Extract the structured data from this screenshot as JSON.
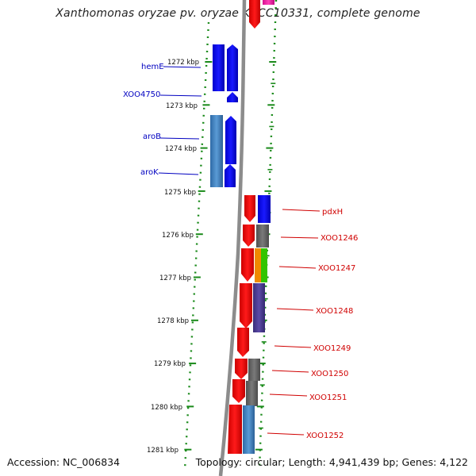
{
  "title": "Xanthomonas oryzae pv. oryzae KACC10331, complete genome",
  "footer": {
    "accession": "Accession: NC_006834",
    "summary": "Topology: circular; Length: 4,941,439 bp; Genes: 4,122"
  },
  "colors": {
    "forward_label": "#0000c0",
    "reverse_label": "#d00000",
    "backbone": "#8c8c8c",
    "tick": "#1a8a1a"
  },
  "ticks": [
    "1272 kbp",
    "1273 kbp",
    "1274 kbp",
    "1275 kbp",
    "1276 kbp",
    "1277 kbp",
    "1278 kbp",
    "1279 kbp",
    "1280 kbp",
    "1281 kbp"
  ],
  "labels": {
    "left": [
      "hemE",
      "XOO4750",
      "aroB",
      "aroK"
    ],
    "right": [
      "pdxH",
      "XOO1246",
      "XOO1247",
      "XOO1248",
      "XOO1249",
      "XOO1250",
      "XOO1251",
      "XOO1252"
    ]
  }
}
